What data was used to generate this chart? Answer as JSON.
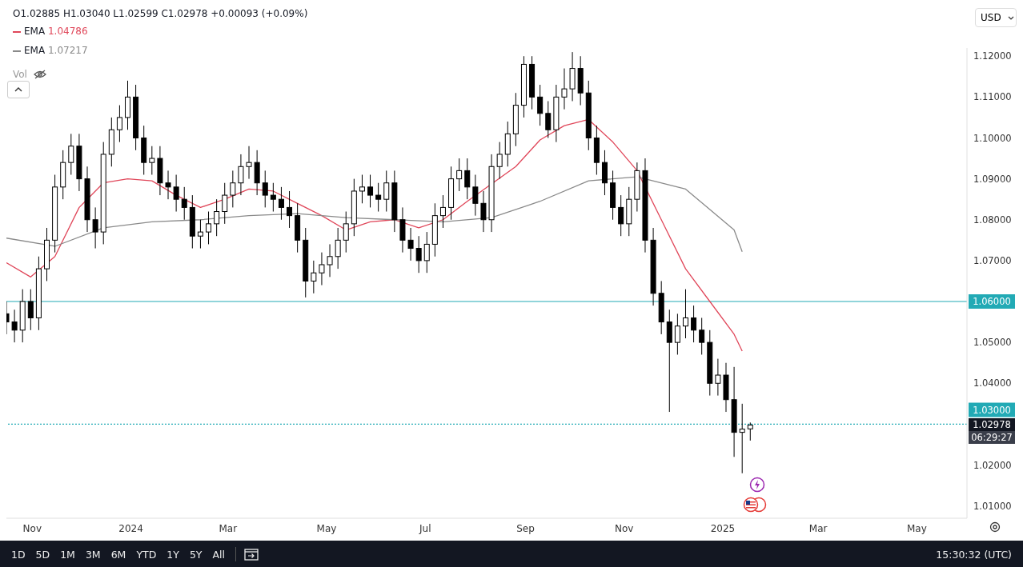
{
  "chart_data": {
    "type": "candlestick",
    "x": [
      "2023-10-16",
      "2023-10-21",
      "2023-10-26",
      "2023-10-31",
      "2023-11-05",
      "2023-11-10",
      "2023-11-15",
      "2023-11-20",
      "2023-11-25",
      "2023-11-30",
      "2023-12-05",
      "2023-12-10",
      "2023-12-15",
      "2023-12-20",
      "2023-12-25",
      "2023-12-30",
      "2024-01-04",
      "2024-01-09",
      "2024-01-14",
      "2024-01-19",
      "2024-01-24",
      "2024-01-29",
      "2024-02-03",
      "2024-02-08",
      "2024-02-13",
      "2024-02-18",
      "2024-02-23",
      "2024-02-28",
      "2024-03-04",
      "2024-03-09",
      "2024-03-14",
      "2024-03-19",
      "2024-03-24",
      "2024-03-29",
      "2024-04-03",
      "2024-04-08",
      "2024-04-13",
      "2024-04-18",
      "2024-04-23",
      "2024-04-28",
      "2024-05-03",
      "2024-05-08",
      "2024-05-13",
      "2024-05-18",
      "2024-05-23",
      "2024-05-28",
      "2024-06-02",
      "2024-06-07",
      "2024-06-12",
      "2024-06-17",
      "2024-06-22",
      "2024-06-27",
      "2024-07-02",
      "2024-07-07",
      "2024-07-12",
      "2024-07-17",
      "2024-07-22",
      "2024-07-27",
      "2024-08-01",
      "2024-08-06",
      "2024-08-11",
      "2024-08-16",
      "2024-08-21",
      "2024-08-26",
      "2024-08-31",
      "2024-09-05",
      "2024-09-10",
      "2024-09-15",
      "2024-09-20",
      "2024-09-25",
      "2024-09-30",
      "2024-10-05",
      "2024-10-10",
      "2024-10-15",
      "2024-10-20",
      "2024-10-25",
      "2024-10-30",
      "2024-11-04",
      "2024-11-09",
      "2024-11-14",
      "2024-11-19",
      "2024-11-24",
      "2024-11-29",
      "2024-12-04",
      "2024-12-09",
      "2024-12-14",
      "2024-12-19",
      "2024-12-24",
      "2024-12-29",
      "2025-01-03",
      "2025-01-08",
      "2025-01-13",
      "2025-01-18"
    ],
    "ohlc": [
      [
        1.057,
        1.06,
        1.052,
        1.055
      ],
      [
        1.055,
        1.058,
        1.05,
        1.053
      ],
      [
        1.053,
        1.063,
        1.05,
        1.06
      ],
      [
        1.06,
        1.063,
        1.053,
        1.056
      ],
      [
        1.056,
        1.071,
        1.053,
        1.068
      ],
      [
        1.068,
        1.078,
        1.065,
        1.075
      ],
      [
        1.075,
        1.091,
        1.072,
        1.088
      ],
      [
        1.088,
        1.097,
        1.085,
        1.094
      ],
      [
        1.094,
        1.101,
        1.091,
        1.098
      ],
      [
        1.098,
        1.101,
        1.087,
        1.09
      ],
      [
        1.09,
        1.093,
        1.077,
        1.08
      ],
      [
        1.08,
        1.083,
        1.073,
        1.077
      ],
      [
        1.077,
        1.099,
        1.074,
        1.096
      ],
      [
        1.096,
        1.105,
        1.093,
        1.102
      ],
      [
        1.102,
        1.108,
        1.099,
        1.105
      ],
      [
        1.105,
        1.114,
        1.102,
        1.11
      ],
      [
        1.11,
        1.113,
        1.097,
        1.1
      ],
      [
        1.1,
        1.103,
        1.091,
        1.094
      ],
      [
        1.094,
        1.098,
        1.091,
        1.095
      ],
      [
        1.095,
        1.098,
        1.086,
        1.089
      ],
      [
        1.089,
        1.092,
        1.085,
        1.088
      ],
      [
        1.088,
        1.091,
        1.082,
        1.085
      ],
      [
        1.085,
        1.088,
        1.08,
        1.083
      ],
      [
        1.083,
        1.086,
        1.073,
        1.076
      ],
      [
        1.076,
        1.08,
        1.073,
        1.077
      ],
      [
        1.077,
        1.082,
        1.074,
        1.079
      ],
      [
        1.079,
        1.085,
        1.076,
        1.082
      ],
      [
        1.082,
        1.089,
        1.079,
        1.086
      ],
      [
        1.086,
        1.092,
        1.083,
        1.089
      ],
      [
        1.089,
        1.096,
        1.086,
        1.093
      ],
      [
        1.093,
        1.098,
        1.09,
        1.094
      ],
      [
        1.094,
        1.097,
        1.086,
        1.089
      ],
      [
        1.089,
        1.092,
        1.083,
        1.086
      ],
      [
        1.086,
        1.089,
        1.082,
        1.085
      ],
      [
        1.085,
        1.088,
        1.08,
        1.083
      ],
      [
        1.083,
        1.087,
        1.078,
        1.081
      ],
      [
        1.081,
        1.084,
        1.072,
        1.075
      ],
      [
        1.075,
        1.078,
        1.061,
        1.065
      ],
      [
        1.065,
        1.07,
        1.062,
        1.067
      ],
      [
        1.067,
        1.072,
        1.064,
        1.069
      ],
      [
        1.069,
        1.074,
        1.066,
        1.071
      ],
      [
        1.071,
        1.078,
        1.068,
        1.075
      ],
      [
        1.075,
        1.082,
        1.072,
        1.079
      ],
      [
        1.079,
        1.09,
        1.076,
        1.087
      ],
      [
        1.087,
        1.091,
        1.084,
        1.088
      ],
      [
        1.088,
        1.091,
        1.083,
        1.086
      ],
      [
        1.086,
        1.089,
        1.082,
        1.085
      ],
      [
        1.085,
        1.092,
        1.082,
        1.089
      ],
      [
        1.089,
        1.092,
        1.077,
        1.08
      ],
      [
        1.08,
        1.083,
        1.072,
        1.075
      ],
      [
        1.075,
        1.078,
        1.07,
        1.073
      ],
      [
        1.073,
        1.076,
        1.067,
        1.07
      ],
      [
        1.07,
        1.077,
        1.067,
        1.074
      ],
      [
        1.074,
        1.084,
        1.071,
        1.081
      ],
      [
        1.081,
        1.086,
        1.078,
        1.083
      ],
      [
        1.083,
        1.093,
        1.08,
        1.09
      ],
      [
        1.09,
        1.095,
        1.087,
        1.092
      ],
      [
        1.092,
        1.095,
        1.085,
        1.088
      ],
      [
        1.088,
        1.091,
        1.081,
        1.084
      ],
      [
        1.084,
        1.087,
        1.077,
        1.08
      ],
      [
        1.08,
        1.096,
        1.077,
        1.093
      ],
      [
        1.093,
        1.099,
        1.09,
        1.096
      ],
      [
        1.096,
        1.104,
        1.093,
        1.101
      ],
      [
        1.101,
        1.111,
        1.098,
        1.108
      ],
      [
        1.108,
        1.12,
        1.105,
        1.118
      ],
      [
        1.118,
        1.12,
        1.107,
        1.11
      ],
      [
        1.11,
        1.113,
        1.103,
        1.106
      ],
      [
        1.106,
        1.109,
        1.1,
        1.102
      ],
      [
        1.102,
        1.113,
        1.099,
        1.11
      ],
      [
        1.11,
        1.117,
        1.107,
        1.112
      ],
      [
        1.112,
        1.121,
        1.109,
        1.117
      ],
      [
        1.117,
        1.12,
        1.108,
        1.111
      ],
      [
        1.111,
        1.114,
        1.097,
        1.1
      ],
      [
        1.1,
        1.103,
        1.091,
        1.094
      ],
      [
        1.094,
        1.097,
        1.086,
        1.089
      ],
      [
        1.089,
        1.092,
        1.08,
        1.083
      ],
      [
        1.083,
        1.086,
        1.076,
        1.079
      ],
      [
        1.079,
        1.088,
        1.076,
        1.085
      ],
      [
        1.085,
        1.094,
        1.082,
        1.092
      ],
      [
        1.092,
        1.095,
        1.072,
        1.075
      ],
      [
        1.075,
        1.078,
        1.059,
        1.062
      ],
      [
        1.062,
        1.065,
        1.052,
        1.055
      ],
      [
        1.055,
        1.058,
        1.033,
        1.05
      ],
      [
        1.05,
        1.057,
        1.047,
        1.054
      ],
      [
        1.054,
        1.063,
        1.051,
        1.056
      ],
      [
        1.056,
        1.059,
        1.05,
        1.053
      ],
      [
        1.053,
        1.056,
        1.047,
        1.05
      ],
      [
        1.05,
        1.053,
        1.037,
        1.04
      ],
      [
        1.04,
        1.046,
        1.037,
        1.042
      ],
      [
        1.042,
        1.045,
        1.033,
        1.036
      ],
      [
        1.036,
        1.044,
        1.022,
        1.028
      ],
      [
        1.028,
        1.035,
        1.018,
        1.0288
      ],
      [
        1.02885,
        1.0304,
        1.02599,
        1.02978
      ]
    ],
    "series": [
      {
        "type": "line",
        "name": "EMA",
        "color": "#e0475a",
        "x": [
          "2023-10-16",
          "2023-10-31",
          "2023-11-15",
          "2023-11-30",
          "2023-12-15",
          "2023-12-30",
          "2024-01-14",
          "2024-01-29",
          "2024-02-13",
          "2024-02-28",
          "2024-03-14",
          "2024-03-29",
          "2024-04-13",
          "2024-04-28",
          "2024-05-13",
          "2024-05-28",
          "2024-06-12",
          "2024-06-27",
          "2024-07-12",
          "2024-07-27",
          "2024-08-11",
          "2024-08-26",
          "2024-09-10",
          "2024-09-25",
          "2024-10-10",
          "2024-10-25",
          "2024-11-09",
          "2024-11-24",
          "2024-12-09",
          "2024-12-24",
          "2025-01-08",
          "2025-01-13"
        ],
        "values": [
          1.0695,
          1.066,
          1.071,
          1.083,
          1.089,
          1.09,
          1.0895,
          1.086,
          1.083,
          1.085,
          1.0875,
          1.087,
          1.084,
          1.081,
          1.0775,
          1.0795,
          1.08,
          1.078,
          1.08,
          1.0845,
          null,
          1.093,
          1.0995,
          1.103,
          1.1045,
          1.099,
          1.092,
          1.08,
          1.068,
          1.06,
          1.052,
          1.04786
        ]
      },
      {
        "type": "line",
        "name": "EMA",
        "color": "#8a8a8a",
        "x": [
          "2023-10-16",
          "2023-11-15",
          "2023-12-15",
          "2024-01-14",
          "2024-02-13",
          "2024-03-14",
          "2024-04-13",
          "2024-05-13",
          "2024-06-12",
          "2024-07-12",
          "2024-08-11",
          "2024-09-10",
          "2024-10-10",
          "2024-11-09",
          "2024-12-09",
          "2025-01-08",
          "2025-01-13"
        ],
        "values": [
          1.0755,
          1.0735,
          1.078,
          1.0795,
          1.08,
          1.081,
          1.0815,
          1.0805,
          1.08,
          1.0795,
          1.0805,
          1.0845,
          1.0895,
          1.0905,
          1.0875,
          1.0775,
          1.07217
        ]
      }
    ],
    "xlim": [
      "2023-10-16",
      "2025-06-01"
    ],
    "xticks": [
      {
        "value": "2023-11-01",
        "label": "Nov"
      },
      {
        "value": "2024-01-01",
        "label": "2024"
      },
      {
        "value": "2024-03-01",
        "label": "Mar"
      },
      {
        "value": "2024-05-01",
        "label": "May"
      },
      {
        "value": "2024-07-01",
        "label": "Jul"
      },
      {
        "value": "2024-09-01",
        "label": "Sep"
      },
      {
        "value": "2024-11-01",
        "label": "Nov"
      },
      {
        "value": "2025-01-01",
        "label": "2025"
      },
      {
        "value": "2025-03-01",
        "label": "Mar"
      },
      {
        "value": "2025-05-01",
        "label": "May"
      }
    ],
    "ylim": [
      1.007,
      1.122
    ],
    "yticks": [
      {
        "value": 1.01,
        "label": "1.01000"
      },
      {
        "value": 1.02,
        "label": "1.02000"
      },
      {
        "value": 1.04,
        "label": "1.04000"
      },
      {
        "value": 1.05,
        "label": "1.05000"
      },
      {
        "value": 1.07,
        "label": "1.07000"
      },
      {
        "value": 1.08,
        "label": "1.08000"
      },
      {
        "value": 1.09,
        "label": "1.09000"
      },
      {
        "value": 1.1,
        "label": "1.10000"
      },
      {
        "value": 1.11,
        "label": "1.11000"
      },
      {
        "value": 1.12,
        "label": "1.12000"
      }
    ],
    "ref_lines": [
      {
        "axis": "y",
        "value": 1.06,
        "label": "1.06000",
        "color": "#22aab5",
        "line_style": "solid"
      },
      {
        "axis": "y",
        "value": 1.03,
        "label": "1.03000",
        "color": "#22aab5",
        "line_style": "dotted"
      }
    ],
    "legend": "top left",
    "annotations": [
      "O1.02885 H1.03040 L1.02599 C1.02978 +0.00093 (+0.09%)",
      "1.04786",
      "1.07217",
      "Vol",
      "USD",
      "1D",
      "5D",
      "1M",
      "3M",
      "6M",
      "YTD",
      "1Y",
      "5Y",
      "All",
      "15:30:32 (UTC)",
      "1.02978",
      "06:29:27"
    ]
  }
}
